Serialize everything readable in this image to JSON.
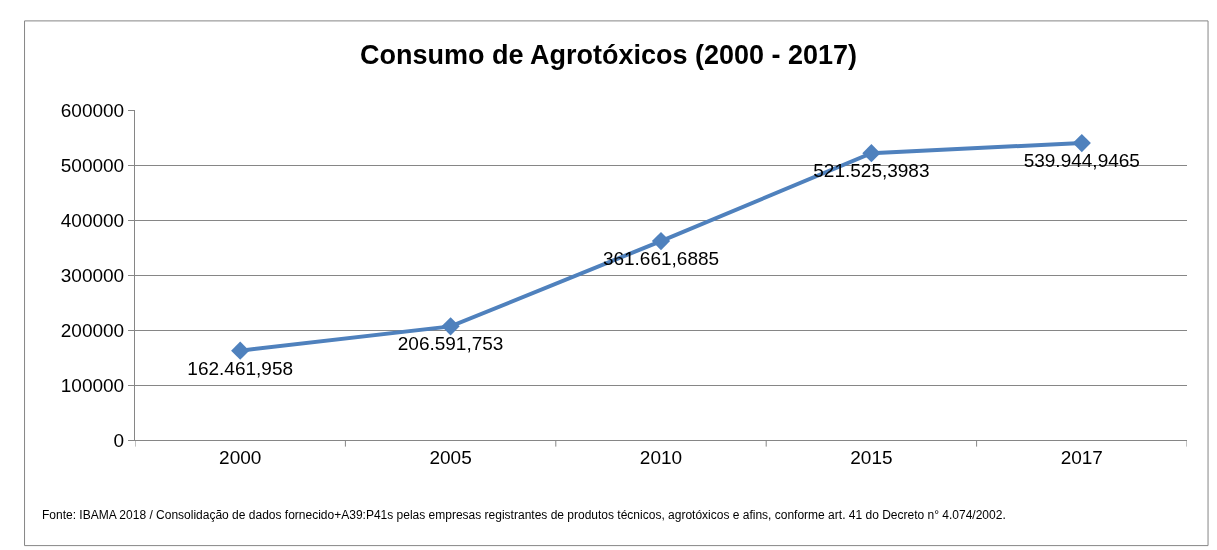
{
  "chart_data": {
    "type": "line",
    "title": "Consumo de Agrotóxicos (2000 - 2017)",
    "categories": [
      "2000",
      "2005",
      "2010",
      "2015",
      "2017"
    ],
    "series": [
      {
        "color": "#4f81bd",
        "values": [
          162461.958,
          206591.753,
          361661.6885,
          521525.3983,
          539944.9465
        ],
        "value_labels": [
          "162.461,958",
          "206.591,753",
          "361.661,6885",
          "521.525,3983",
          "539.944,9465"
        ]
      }
    ],
    "ylim": [
      0,
      600000
    ],
    "yticks": [
      0,
      100000,
      200000,
      300000,
      400000,
      500000,
      600000
    ],
    "grid": "y",
    "legend": false,
    "marker": "diamond",
    "line_style": "solid",
    "annotations": [
      "Fonte: IBAMA 2018 / Consolidação de dados fornecido+A39:P41s pelas empresas registrantes de produtos técnicos, agrotóxicos e afins, conforme art. 41 do Decreto n° 4.074/2002."
    ]
  }
}
